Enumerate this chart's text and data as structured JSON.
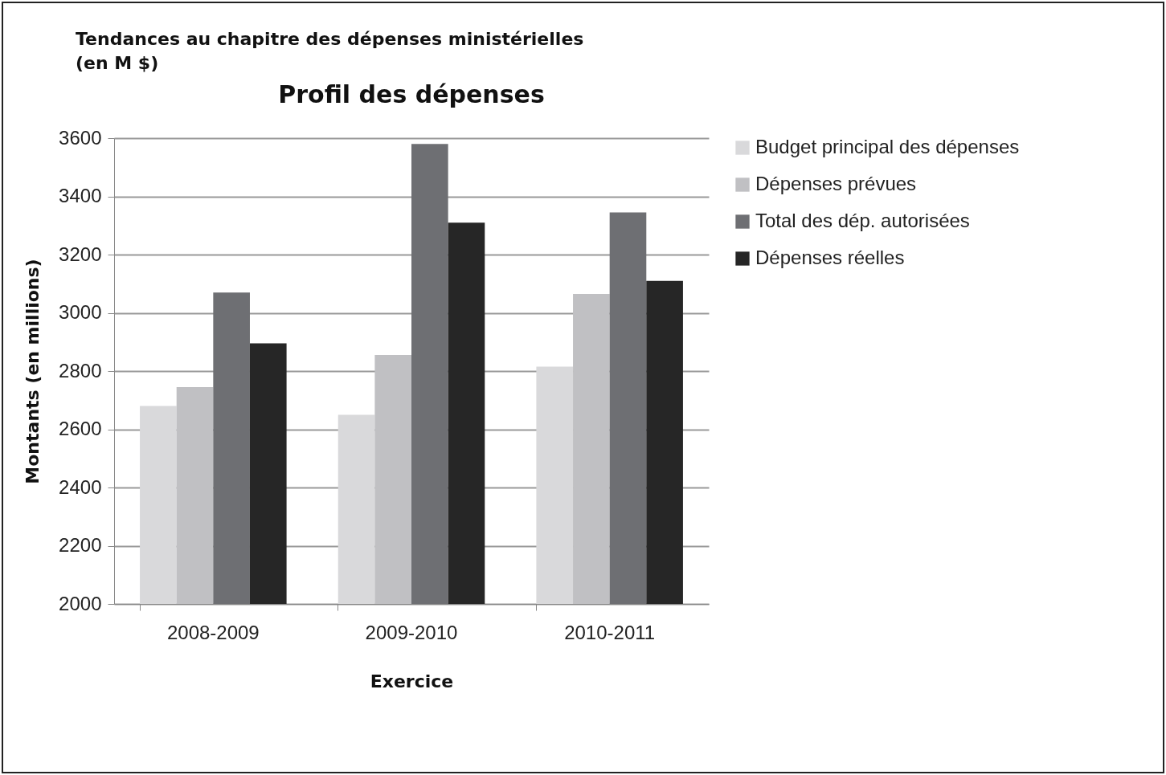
{
  "chart_data": {
    "type": "bar",
    "title": "Tendances au chapitre des dépenses ministérielles (en M $)",
    "subtitle": "Profil des dépenses",
    "xlabel": "Exercice",
    "ylabel": "Montants (en millions)",
    "categories": [
      "2008-2009",
      "2009-2010",
      "2010-2011"
    ],
    "series": [
      {
        "name": "Budget principal des dépenses",
        "color": "#d9d9db",
        "values": [
          2680,
          2650,
          2815
        ]
      },
      {
        "name": "Dépenses prévues",
        "color": "#c0c0c3",
        "values": [
          2745,
          2855,
          3065
        ]
      },
      {
        "name": "Total des dép. autorisées",
        "color": "#6e6f73",
        "values": [
          3070,
          3580,
          3345
        ]
      },
      {
        "name": "Dépenses réelles",
        "color": "#262626",
        "values": [
          2895,
          3310,
          3110
        ]
      }
    ],
    "ylim": [
      2000,
      3600
    ],
    "yticks": [
      2000,
      2200,
      2400,
      2600,
      2800,
      3000,
      3200,
      3400,
      3600
    ],
    "grid": "y",
    "legend": "right"
  }
}
